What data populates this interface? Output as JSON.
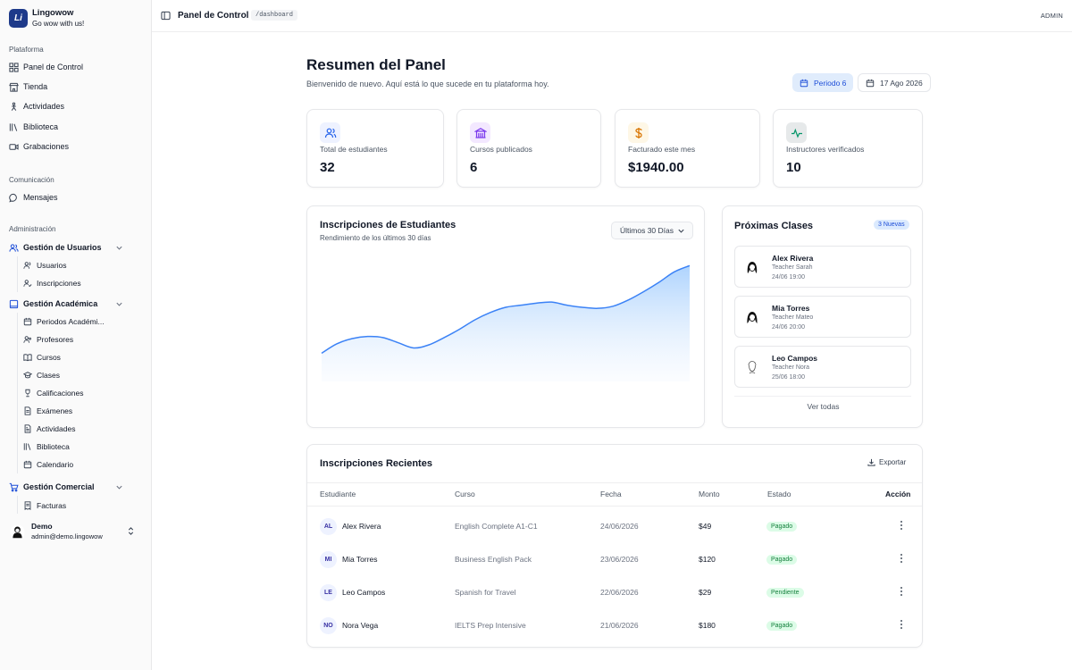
{
  "brand": {
    "logo_text": "Li",
    "name": "Lingowow",
    "tagline": "Go wow with us!"
  },
  "sidebar": {
    "section_platform": "Plataforma",
    "platform_items": [
      {
        "label": "Panel de Control",
        "icon": "grid-icon"
      },
      {
        "label": "Tienda",
        "icon": "store-icon"
      },
      {
        "label": "Actividades",
        "icon": "activity-icon"
      },
      {
        "label": "Biblioteca",
        "icon": "library-icon"
      },
      {
        "label": "Grabaciones",
        "icon": "video-icon"
      }
    ],
    "section_communication": "Comunicación",
    "communication_items": [
      {
        "label": "Mensajes",
        "icon": "message-icon"
      }
    ],
    "section_admin": "Administración",
    "groups": [
      {
        "label": "Gestión de Usuarios",
        "icon": "users-icon",
        "items": [
          "Usuarios",
          "Inscripciones"
        ]
      },
      {
        "label": "Gestión Académica",
        "icon": "book-icon",
        "items": [
          "Periodos Académi...",
          "Profesores",
          "Cursos",
          "Clases",
          "Calificaciones",
          "Exámenes",
          "Actividades",
          "Biblioteca",
          "Calendario"
        ]
      },
      {
        "label": "Gestión Comercial",
        "icon": "cart-icon",
        "items": [
          "Facturas"
        ]
      }
    ],
    "user": {
      "name": "Demo",
      "email": "admin@demo.lingowow"
    }
  },
  "topbar": {
    "title": "Panel de Control",
    "route": "/dashboard",
    "role": "ADMIN"
  },
  "header": {
    "title": "Resumen del Panel",
    "subtitle": "Bienvenido de nuevo. Aquí está lo que sucede en tu plataforma hoy.",
    "period_label": "Periodo 6",
    "date_label": "17 Ago 2026"
  },
  "stats": [
    {
      "label": "Total de estudiantes",
      "value": "32",
      "icon": "users-icon",
      "color": "#2563eb",
      "bg": "#eef2ff"
    },
    {
      "label": "Cursos publicados",
      "value": "6",
      "icon": "building-icon",
      "color": "#7c3aed",
      "bg": "#f3e8ff"
    },
    {
      "label": "Facturado este mes",
      "value": "$1940.00",
      "icon": "dollar-icon",
      "color": "#d97706",
      "bg": "#fef7e6"
    },
    {
      "label": "Instructores verificados",
      "value": "10",
      "icon": "pulse-icon",
      "color": "#059669",
      "bg": "#e6e9ea"
    }
  ],
  "chart": {
    "title": "Inscripciones de Estudiantes",
    "subtitle": "Rendimiento de los últimos 30 días",
    "range_label": "Últimos 30 Días",
    "line_color": "#3b82f6"
  },
  "chart_data": {
    "type": "area",
    "values": [
      22,
      31,
      36,
      38,
      37,
      32,
      27,
      30,
      37,
      45,
      54,
      61,
      66,
      68,
      70,
      71,
      68,
      66,
      65,
      67,
      73,
      81,
      90,
      100,
      106
    ],
    "ylim": [
      0,
      120
    ],
    "grid": false,
    "title": "Inscripciones de Estudiantes"
  },
  "classes": {
    "title": "Próximas Clases",
    "badge": "3 Nuevas",
    "items": [
      {
        "name": "Alex Rivera",
        "teacher": "Teacher Sarah",
        "time": "24/06 19:00"
      },
      {
        "name": "Mia Torres",
        "teacher": "Teacher Mateo",
        "time": "24/06 20:00"
      },
      {
        "name": "Leo Campos",
        "teacher": "Teacher Nora",
        "time": "25/06 18:00"
      }
    ],
    "see_all": "Ver todas"
  },
  "table": {
    "title": "Inscripciones Recientes",
    "export_label": "Exportar",
    "headers": [
      "Estudiante",
      "Curso",
      "Fecha",
      "Monto",
      "Estado",
      "Acción"
    ],
    "rows": [
      {
        "initials": "AL",
        "student": "Alex Rivera",
        "course": "English Complete A1-C1",
        "date": "24/06/2026",
        "amount": "$49",
        "status": "Pagado"
      },
      {
        "initials": "MI",
        "student": "Mia Torres",
        "course": "Business English Pack",
        "date": "23/06/2026",
        "amount": "$120",
        "status": "Pagado"
      },
      {
        "initials": "LE",
        "student": "Leo Campos",
        "course": "Spanish for Travel",
        "date": "22/06/2026",
        "amount": "$29",
        "status": "Pendiente"
      },
      {
        "initials": "NO",
        "student": "Nora Vega",
        "course": "IELTS Prep Intensive",
        "date": "21/06/2026",
        "amount": "$180",
        "status": "Pagado"
      }
    ]
  }
}
